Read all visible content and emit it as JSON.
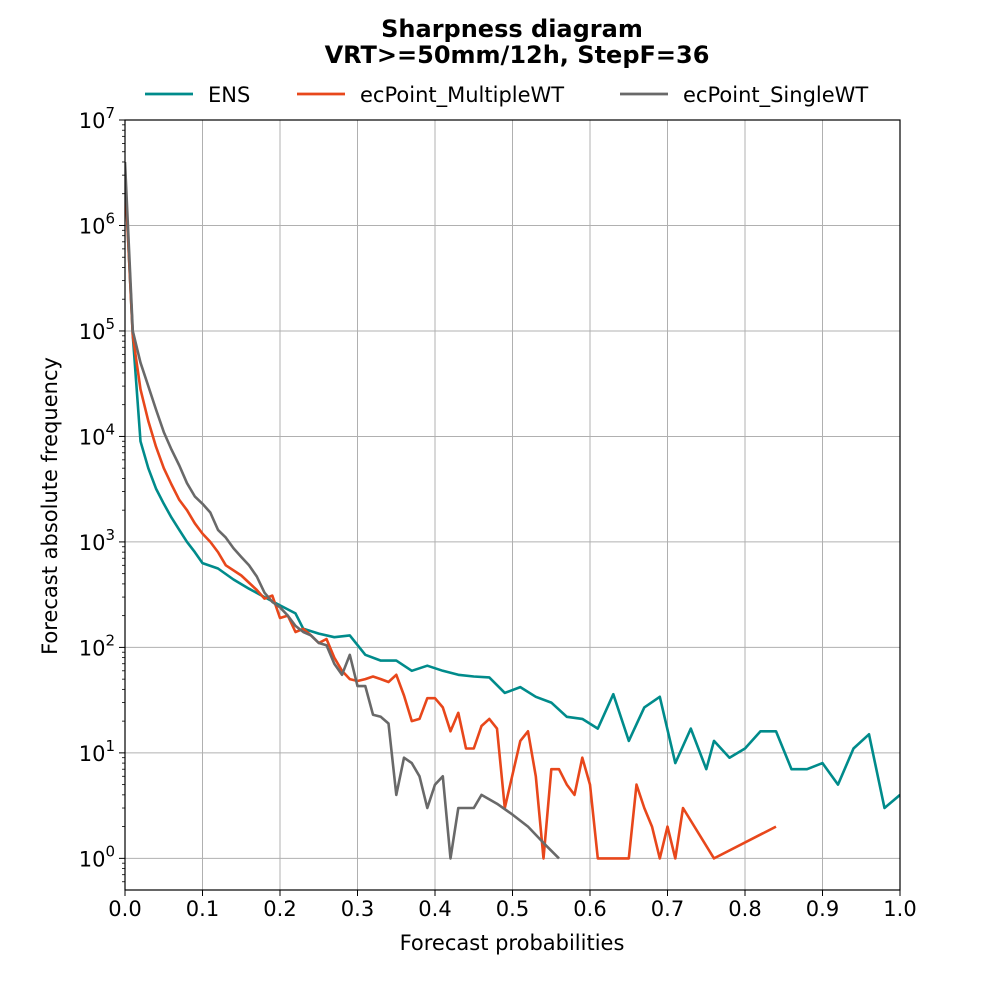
{
  "chart_data": {
    "type": "line",
    "title": "Sharpness diagram",
    "subtitle": "VRT>=50mm/12h, StepF=36",
    "xlabel": "Forecast probabilities",
    "ylabel": "Forecast absolute frequency",
    "xlim": [
      0.0,
      1.0
    ],
    "ylim_exponent": [
      -0.3,
      7
    ],
    "yscale": "log",
    "grid": true,
    "legend_position": "top-center",
    "x_ticks": [
      "0.0",
      "0.1",
      "0.2",
      "0.3",
      "0.4",
      "0.5",
      "0.6",
      "0.7",
      "0.8",
      "0.9",
      "1.0"
    ],
    "y_ticks": [
      {
        "base": "10",
        "exp": "0",
        "value": 1
      },
      {
        "base": "10",
        "exp": "1",
        "value": 10
      },
      {
        "base": "10",
        "exp": "2",
        "value": 100
      },
      {
        "base": "10",
        "exp": "3",
        "value": 1000
      },
      {
        "base": "10",
        "exp": "4",
        "value": 10000
      },
      {
        "base": "10",
        "exp": "5",
        "value": 100000
      },
      {
        "base": "10",
        "exp": "6",
        "value": 1000000
      },
      {
        "base": "10",
        "exp": "7",
        "value": 10000000
      }
    ],
    "series": [
      {
        "name": "ENS",
        "color": "#008b8b",
        "points": [
          [
            0.0,
            3000000
          ],
          [
            0.01,
            90000
          ],
          [
            0.02,
            9000
          ],
          [
            0.03,
            5000
          ],
          [
            0.04,
            3200
          ],
          [
            0.05,
            2300
          ],
          [
            0.06,
            1700
          ],
          [
            0.07,
            1300
          ],
          [
            0.08,
            1000
          ],
          [
            0.09,
            800
          ],
          [
            0.1,
            630
          ],
          [
            0.12,
            560
          ],
          [
            0.14,
            440
          ],
          [
            0.16,
            360
          ],
          [
            0.18,
            300
          ],
          [
            0.2,
            250
          ],
          [
            0.22,
            210
          ],
          [
            0.23,
            150
          ],
          [
            0.25,
            135
          ],
          [
            0.27,
            125
          ],
          [
            0.29,
            130
          ],
          [
            0.31,
            85
          ],
          [
            0.33,
            75
          ],
          [
            0.35,
            75
          ],
          [
            0.37,
            60
          ],
          [
            0.39,
            67
          ],
          [
            0.41,
            60
          ],
          [
            0.43,
            55
          ],
          [
            0.45,
            53
          ],
          [
            0.47,
            52
          ],
          [
            0.49,
            37
          ],
          [
            0.51,
            42
          ],
          [
            0.53,
            34
          ],
          [
            0.55,
            30
          ],
          [
            0.57,
            22
          ],
          [
            0.59,
            21
          ],
          [
            0.61,
            17
          ],
          [
            0.63,
            36
          ],
          [
            0.65,
            13
          ],
          [
            0.67,
            27
          ],
          [
            0.69,
            34
          ],
          [
            0.71,
            8
          ],
          [
            0.73,
            17
          ],
          [
            0.75,
            7
          ],
          [
            0.76,
            13
          ],
          [
            0.78,
            9
          ],
          [
            0.8,
            11
          ],
          [
            0.82,
            16
          ],
          [
            0.84,
            16
          ],
          [
            0.86,
            7
          ],
          [
            0.88,
            7
          ],
          [
            0.9,
            8
          ],
          [
            0.92,
            5
          ],
          [
            0.94,
            11
          ],
          [
            0.96,
            15
          ],
          [
            0.98,
            3
          ],
          [
            1.0,
            4
          ]
        ]
      },
      {
        "name": "ecPoint_MultipleWT",
        "color": "#e8471b",
        "points": [
          [
            0.0,
            3000000
          ],
          [
            0.01,
            90000
          ],
          [
            0.02,
            28000
          ],
          [
            0.03,
            14000
          ],
          [
            0.04,
            8000
          ],
          [
            0.05,
            5000
          ],
          [
            0.06,
            3500
          ],
          [
            0.07,
            2500
          ],
          [
            0.08,
            2000
          ],
          [
            0.09,
            1500
          ],
          [
            0.1,
            1200
          ],
          [
            0.11,
            1000
          ],
          [
            0.12,
            800
          ],
          [
            0.13,
            600
          ],
          [
            0.15,
            480
          ],
          [
            0.17,
            350
          ],
          [
            0.18,
            290
          ],
          [
            0.19,
            310
          ],
          [
            0.2,
            190
          ],
          [
            0.21,
            200
          ],
          [
            0.22,
            140
          ],
          [
            0.23,
            150
          ],
          [
            0.24,
            130
          ],
          [
            0.25,
            110
          ],
          [
            0.26,
            120
          ],
          [
            0.27,
            80
          ],
          [
            0.28,
            60
          ],
          [
            0.29,
            50
          ],
          [
            0.3,
            48
          ],
          [
            0.31,
            50
          ],
          [
            0.32,
            53
          ],
          [
            0.33,
            50
          ],
          [
            0.34,
            47
          ],
          [
            0.35,
            55
          ],
          [
            0.36,
            35
          ],
          [
            0.37,
            20
          ],
          [
            0.38,
            21
          ],
          [
            0.39,
            33
          ],
          [
            0.4,
            33
          ],
          [
            0.41,
            27
          ],
          [
            0.42,
            16
          ],
          [
            0.43,
            24
          ],
          [
            0.44,
            11
          ],
          [
            0.45,
            11
          ],
          [
            0.46,
            18
          ],
          [
            0.47,
            21
          ],
          [
            0.48,
            17
          ],
          [
            0.49,
            3
          ],
          [
            0.51,
            13
          ],
          [
            0.52,
            16
          ],
          [
            0.53,
            6
          ],
          [
            0.54,
            1
          ],
          [
            0.55,
            7
          ],
          [
            0.56,
            7
          ],
          [
            0.57,
            5
          ],
          [
            0.58,
            4
          ],
          [
            0.59,
            9
          ],
          [
            0.6,
            5
          ],
          [
            0.61,
            1
          ],
          [
            0.63,
            1
          ],
          [
            0.65,
            1
          ],
          [
            0.66,
            5
          ],
          [
            0.67,
            3
          ],
          [
            0.68,
            2
          ],
          [
            0.69,
            1
          ],
          [
            0.7,
            2
          ],
          [
            0.71,
            1
          ],
          [
            0.72,
            3
          ],
          [
            0.76,
            1
          ],
          [
            0.84,
            2
          ]
        ]
      },
      {
        "name": "ecPoint_SingleWT",
        "color": "#696969",
        "points": [
          [
            0.0,
            4000000
          ],
          [
            0.01,
            100000
          ],
          [
            0.02,
            50000
          ],
          [
            0.03,
            30000
          ],
          [
            0.04,
            18000
          ],
          [
            0.05,
            11000
          ],
          [
            0.06,
            7500
          ],
          [
            0.07,
            5300
          ],
          [
            0.08,
            3600
          ],
          [
            0.09,
            2700
          ],
          [
            0.1,
            2300
          ],
          [
            0.11,
            1900
          ],
          [
            0.12,
            1300
          ],
          [
            0.13,
            1100
          ],
          [
            0.14,
            870
          ],
          [
            0.15,
            720
          ],
          [
            0.16,
            600
          ],
          [
            0.17,
            470
          ],
          [
            0.18,
            330
          ],
          [
            0.19,
            270
          ],
          [
            0.2,
            240
          ],
          [
            0.21,
            200
          ],
          [
            0.22,
            160
          ],
          [
            0.23,
            140
          ],
          [
            0.24,
            130
          ],
          [
            0.25,
            110
          ],
          [
            0.26,
            105
          ],
          [
            0.27,
            70
          ],
          [
            0.28,
            55
          ],
          [
            0.29,
            85
          ],
          [
            0.3,
            43
          ],
          [
            0.31,
            43
          ],
          [
            0.32,
            23
          ],
          [
            0.33,
            22
          ],
          [
            0.34,
            19
          ],
          [
            0.35,
            4
          ],
          [
            0.36,
            9
          ],
          [
            0.37,
            8
          ],
          [
            0.38,
            6
          ],
          [
            0.39,
            3
          ],
          [
            0.4,
            5
          ],
          [
            0.41,
            6
          ],
          [
            0.42,
            1
          ],
          [
            0.43,
            3
          ],
          [
            0.45,
            3
          ],
          [
            0.46,
            4
          ],
          [
            0.48,
            3.3
          ],
          [
            0.5,
            2.6
          ],
          [
            0.52,
            2
          ],
          [
            0.54,
            1.4
          ],
          [
            0.56,
            1
          ]
        ]
      }
    ]
  }
}
